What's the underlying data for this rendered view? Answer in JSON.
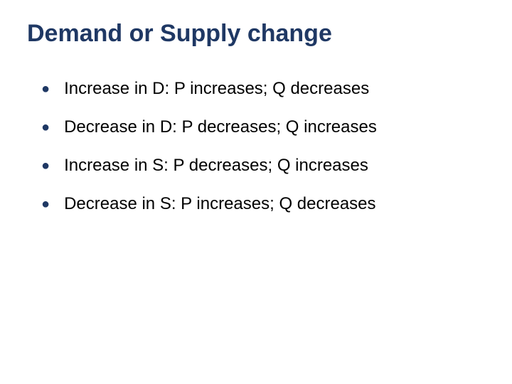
{
  "slide": {
    "title": "Demand or Supply change",
    "title_color": "#1f3864",
    "title_fontsize": 34,
    "title_fontweight": "bold",
    "background_color": "#ffffff",
    "bullet_color": "#1f3864",
    "text_color": "#000000",
    "text_fontsize": 24,
    "bullets": [
      {
        "text": "Increase in D: P increases; Q decreases"
      },
      {
        "text": "Decrease in D: P decreases; Q increases"
      },
      {
        "text": "Increase in S: P decreases; Q increases"
      },
      {
        "text": "Decrease in S: P increases; Q decreases"
      }
    ]
  }
}
